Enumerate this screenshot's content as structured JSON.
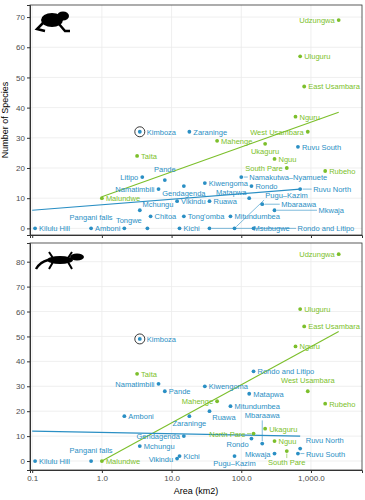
{
  "chart_data": [
    {
      "type": "scatter",
      "y_label": "Number of Species",
      "log": "x",
      "grid": true,
      "tick_labels": "y",
      "xlim": [
        0.093,
        5400
      ],
      "xticks": [
        0.1,
        1,
        10,
        100,
        1000
      ],
      "ylim": [
        -2.2,
        74
      ],
      "yticks": [
        0,
        10,
        20,
        30,
        40,
        50,
        60,
        70
      ],
      "series": [
        {
          "type": "scatter",
          "marker": "circle",
          "color": "#7cbf2b",
          "labels": [
            "Malundwe",
            "Taita",
            "Mahenge",
            "Uluguru",
            "East Usambara",
            "Nguru",
            "West Usambara",
            "Ukaguru",
            "Nguu",
            "South Pare",
            "Rubeho",
            "Udzungwa"
          ],
          "x": [
            1.0,
            3.2,
            45,
            700,
            800,
            600,
            900,
            220,
            300,
            450,
            1600,
            2500
          ],
          "values": [
            10,
            24,
            29,
            57,
            47,
            37,
            32,
            28,
            23,
            20,
            19,
            69
          ]
        },
        {
          "type": "scatter",
          "marker": "circle",
          "color": "#2a8fc4",
          "labels": [
            "Kilulu Hill",
            "Pangani falls",
            "Amboni",
            "Litipo",
            "Pande",
            "Namatimbili",
            "Gendagenda",
            "Kiwengoma",
            "Zaraninge",
            "Vikindu",
            "Ruawa",
            "Mchungu",
            "Chitoa",
            "Tong'omba",
            "Tongwe",
            "Kichi",
            "Msubugwe",
            "Namakutwa–Nyamuete",
            "Mitundumbea",
            "Pugu–Kazim",
            "Rondo and Litipo",
            "Rondo",
            "Matapwa",
            "Mbaraawa",
            "Mkwaja",
            "Ruvu South",
            "Ruvu North"
          ],
          "x": [
            0.11,
            0.7,
            2.1,
            3.8,
            8,
            6.5,
            15,
            30,
            18,
            12,
            35,
            3.5,
            5,
            15,
            4.5,
            13,
            35,
            100,
            70,
            80,
            150,
            140,
            130,
            200,
            300,
            650,
            700
          ],
          "values": [
            0,
            0,
            0,
            17,
            16,
            13,
            14,
            15,
            32,
            9,
            9,
            6,
            4,
            4,
            0,
            0,
            0,
            17,
            4,
            0,
            0,
            14,
            10,
            8,
            6,
            27,
            13
          ]
        },
        {
          "type": "scatter",
          "marker": "ringed",
          "color": "#2a8fc4",
          "labels": [
            "Kimboza"
          ],
          "x": [
            3.5
          ],
          "values": [
            32
          ]
        },
        {
          "type": "line",
          "line_style": "solid",
          "color": "#7cbf2b",
          "x": [
            1,
            2500
          ],
          "values": [
            10.5,
            38.5
          ]
        },
        {
          "type": "line",
          "line_style": "solid",
          "color": "#2a8fc4",
          "x": [
            0.1,
            700
          ],
          "values": [
            6,
            13
          ]
        }
      ]
    },
    {
      "type": "scatter",
      "x_label": "Area (km2)",
      "log": "x",
      "grid": true,
      "xlim": [
        0.093,
        5400
      ],
      "xticks": [
        0.1,
        {
          "value": 1,
          "label": "1.0"
        },
        {
          "value": 10,
          "label": "10.0"
        },
        {
          "value": 100,
          "label": "100.0"
        },
        {
          "value": 1000,
          "label": "1,000.0"
        }
      ],
      "ylim": [
        -3.6,
        87.5
      ],
      "yticks": [
        0,
        10,
        20,
        30,
        40,
        50,
        60,
        70,
        80
      ],
      "series": [
        {
          "type": "scatter",
          "marker": "circle",
          "color": "#7cbf2b",
          "labels": [
            "Malundwe",
            "Taita",
            "Mahenge",
            "Uluguru",
            "East Usambara",
            "Nguru",
            "West Usambara",
            "Ukaguru",
            "North Pare",
            "Nguu",
            "South Pare",
            "Rubeho",
            "Udzungwa"
          ],
          "x": [
            1.0,
            3.2,
            45,
            700,
            800,
            600,
            900,
            220,
            150,
            300,
            450,
            1600,
            2500
          ],
          "values": [
            0,
            35,
            24,
            61,
            54,
            46,
            28,
            13,
            11,
            8,
            4,
            23,
            83
          ]
        },
        {
          "type": "scatter",
          "marker": "circle",
          "color": "#2a8fc4",
          "labels": [
            "Kilulu Hill",
            "Pangani falls",
            "Amboni",
            "Pande",
            "Namatimbili",
            "Kiwengoma",
            "Zaraninge",
            "Ruawa",
            "Gendagenda",
            "Mchungu",
            "Kichi",
            "Vikindu",
            "Pugu–Kazim",
            "Mitundumbea",
            "Rondo and Litipo",
            "Rondo",
            "Matapwa",
            "Mbaraawa",
            "Mkwaja",
            "Ruvu South",
            "Ruvu North"
          ],
          "x": [
            0.11,
            0.7,
            2.1,
            8,
            6.5,
            30,
            18,
            35,
            15,
            3.5,
            13,
            12,
            80,
            70,
            150,
            140,
            130,
            200,
            300,
            650,
            700
          ],
          "values": [
            0,
            0,
            18,
            28,
            31,
            30,
            18,
            20,
            10,
            6,
            2,
            1,
            2,
            22,
            36,
            9,
            27,
            7,
            3,
            3,
            5
          ]
        },
        {
          "type": "scatter",
          "marker": "ringed",
          "color": "#2a8fc4",
          "labels": [
            "Kimboza"
          ],
          "x": [
            3.5
          ],
          "values": [
            49
          ]
        },
        {
          "type": "line",
          "line_style": "solid",
          "color": "#7cbf2b",
          "x": [
            1,
            2500
          ],
          "values": [
            0,
            52
          ]
        },
        {
          "type": "line",
          "line_style": "solid",
          "color": "#2a8fc4",
          "x": [
            0.1,
            700
          ],
          "values": [
            12,
            10
          ]
        }
      ]
    }
  ]
}
